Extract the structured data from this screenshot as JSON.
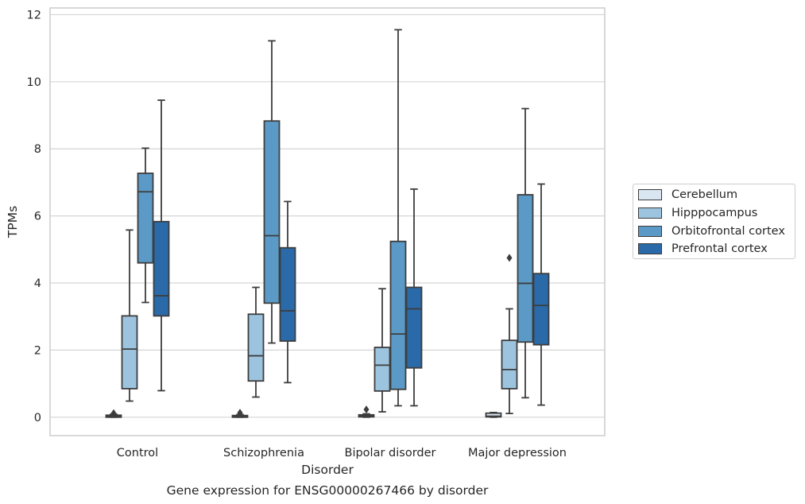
{
  "chart_data": {
    "type": "boxplot",
    "title": "Gene expression for ENSG00000267466 by disorder",
    "xlabel": "Disorder",
    "ylabel": "TPMs",
    "ylim": [
      -0.55,
      12.2
    ],
    "yticks": [
      0,
      2,
      4,
      6,
      8,
      10,
      12
    ],
    "grid": "horizontal",
    "legend_position": "right",
    "categories": [
      "Control",
      "Schizophrenia",
      "Bipolar disorder",
      "Major depression"
    ],
    "series": [
      {
        "name": "Cerebellum",
        "color": "#d9e6f2",
        "boxes": [
          {
            "whisker_low": 0.0,
            "q1": 0.0,
            "median": 0.03,
            "q3": 0.06,
            "whisker_high": 0.09,
            "outliers": [
              0.12
            ]
          },
          {
            "whisker_low": 0.0,
            "q1": 0.0,
            "median": 0.02,
            "q3": 0.05,
            "whisker_high": 0.08,
            "outliers": [
              0.13
            ]
          },
          {
            "whisker_low": 0.0,
            "q1": 0.01,
            "median": 0.04,
            "q3": 0.07,
            "whisker_high": 0.1,
            "outliers": [
              0.23
            ]
          },
          {
            "whisker_low": 0.0,
            "q1": 0.01,
            "median": 0.03,
            "q3": 0.12,
            "whisker_high": 0.14,
            "outliers": []
          }
        ]
      },
      {
        "name": "Hipppocampus",
        "color": "#9dc4df",
        "boxes": [
          {
            "whisker_low": 0.48,
            "q1": 0.85,
            "median": 2.03,
            "q3": 3.02,
            "whisker_high": 5.58,
            "outliers": []
          },
          {
            "whisker_low": 0.6,
            "q1": 1.08,
            "median": 1.83,
            "q3": 3.07,
            "whisker_high": 3.87,
            "outliers": []
          },
          {
            "whisker_low": 0.16,
            "q1": 0.78,
            "median": 1.55,
            "q3": 2.08,
            "whisker_high": 3.83,
            "outliers": []
          },
          {
            "whisker_low": 0.11,
            "q1": 0.85,
            "median": 1.42,
            "q3": 2.29,
            "whisker_high": 3.23,
            "outliers": [
              4.75
            ]
          }
        ]
      },
      {
        "name": "Orbitofrontal cortex",
        "color": "#5b9ac6",
        "boxes": [
          {
            "whisker_low": 3.42,
            "q1": 4.6,
            "median": 6.72,
            "q3": 7.27,
            "whisker_high": 8.02,
            "outliers": []
          },
          {
            "whisker_low": 2.21,
            "q1": 3.4,
            "median": 5.41,
            "q3": 8.83,
            "whisker_high": 11.22,
            "outliers": []
          },
          {
            "whisker_low": 0.34,
            "q1": 0.83,
            "median": 2.48,
            "q3": 5.24,
            "whisker_high": 11.55,
            "outliers": []
          },
          {
            "whisker_low": 0.58,
            "q1": 2.24,
            "median": 3.99,
            "q3": 6.63,
            "whisker_high": 9.2,
            "outliers": []
          }
        ]
      },
      {
        "name": "Prefrontal cortex",
        "color": "#2a6aa8",
        "boxes": [
          {
            "whisker_low": 0.79,
            "q1": 3.02,
            "median": 3.62,
            "q3": 5.83,
            "whisker_high": 9.45,
            "outliers": []
          },
          {
            "whisker_low": 1.03,
            "q1": 2.27,
            "median": 3.17,
            "q3": 5.05,
            "whisker_high": 6.43,
            "outliers": []
          },
          {
            "whisker_low": 0.34,
            "q1": 1.47,
            "median": 3.23,
            "q3": 3.87,
            "whisker_high": 6.8,
            "outliers": []
          },
          {
            "whisker_low": 0.36,
            "q1": 2.16,
            "median": 3.33,
            "q3": 4.28,
            "whisker_high": 6.95,
            "outliers": []
          }
        ]
      }
    ]
  }
}
